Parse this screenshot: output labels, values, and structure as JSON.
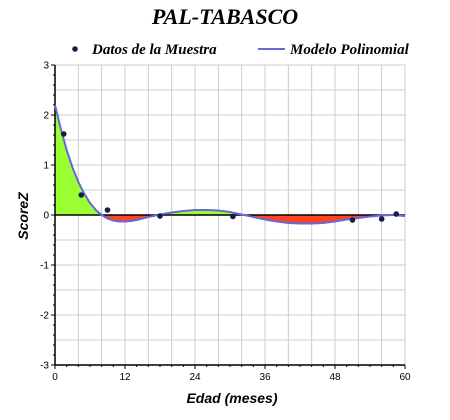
{
  "chart_data": {
    "type": "line",
    "title": "PAL-TABASCO",
    "xlabel": "Edad (meses)",
    "ylabel": "ScoreZ",
    "xlim": [
      0,
      60
    ],
    "ylim": [
      -3,
      3
    ],
    "xticks": [
      0,
      12,
      24,
      36,
      48,
      60
    ],
    "yticks": [
      -3,
      -2,
      -1,
      0,
      1,
      2,
      3
    ],
    "grid": true,
    "legend_position": "top",
    "series": [
      {
        "name": "Datos de la Muestra",
        "kind": "scatter",
        "color": "#1a1a4a",
        "x": [
          1.5,
          4.5,
          9,
          18,
          30.5,
          51,
          56,
          58.5
        ],
        "y": [
          1.62,
          0.4,
          0.1,
          -0.02,
          -0.03,
          -0.1,
          -0.08,
          0.02
        ]
      },
      {
        "name": "Modelo Polinomial",
        "kind": "line",
        "color": "#6666dd",
        "x": [
          0,
          1,
          2,
          3,
          4,
          5,
          6,
          7,
          8,
          9,
          10,
          11,
          12,
          13,
          14,
          15,
          16,
          18,
          20,
          22,
          24,
          26,
          28,
          30,
          32,
          34,
          36,
          38,
          40,
          42,
          44,
          46,
          48,
          50,
          52,
          54,
          56,
          58,
          60
        ],
        "y": [
          2.2,
          1.72,
          1.3,
          0.95,
          0.66,
          0.43,
          0.24,
          0.1,
          0.0,
          -0.07,
          -0.11,
          -0.13,
          -0.13,
          -0.12,
          -0.1,
          -0.07,
          -0.04,
          0.01,
          0.05,
          0.08,
          0.1,
          0.1,
          0.09,
          0.06,
          0.01,
          -0.04,
          -0.09,
          -0.13,
          -0.16,
          -0.17,
          -0.17,
          -0.16,
          -0.13,
          -0.09,
          -0.06,
          -0.03,
          -0.01,
          0.0,
          -0.02
        ]
      }
    ],
    "fill_colors": {
      "positive": "#99ff33",
      "negative": "#ff4422"
    }
  }
}
